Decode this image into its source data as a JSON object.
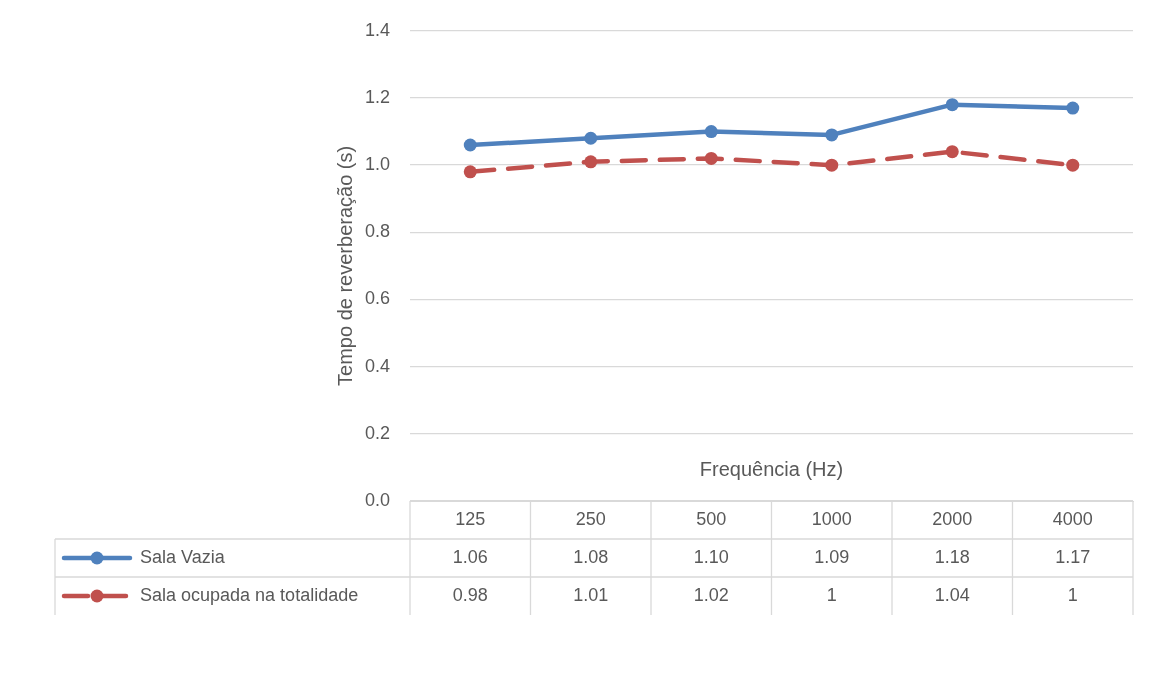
{
  "chart_data": {
    "type": "line",
    "xlabel": "Frequência (Hz)",
    "ylabel": "Tempo de reverberação (s)",
    "categories": [
      "125",
      "250",
      "500",
      "1000",
      "2000",
      "4000"
    ],
    "series": [
      {
        "name": "Sala Vazia",
        "color": "#4f81bd",
        "line_style": "solid",
        "values": [
          1.06,
          1.08,
          1.1,
          1.09,
          1.18,
          1.17
        ],
        "value_labels": [
          "1.06",
          "1.08",
          "1.10",
          "1.09",
          "1.18",
          "1.17"
        ]
      },
      {
        "name": "Sala ocupada na totalidade",
        "color": "#c0504d",
        "line_style": "dashed",
        "values": [
          0.98,
          1.01,
          1.02,
          1,
          1.04,
          1
        ],
        "value_labels": [
          "0.98",
          "1.01",
          "1.02",
          "1",
          "1.04",
          "1"
        ]
      }
    ],
    "ylim": [
      0,
      1.4
    ],
    "yticks": [
      {
        "value": 0,
        "label": "0.0"
      },
      0.2,
      0.4,
      0.6,
      0.8,
      {
        "value": 1,
        "label": "1.0"
      },
      1.2,
      1.4
    ],
    "grid": "y",
    "legend": "bottom",
    "marker": "circle"
  }
}
